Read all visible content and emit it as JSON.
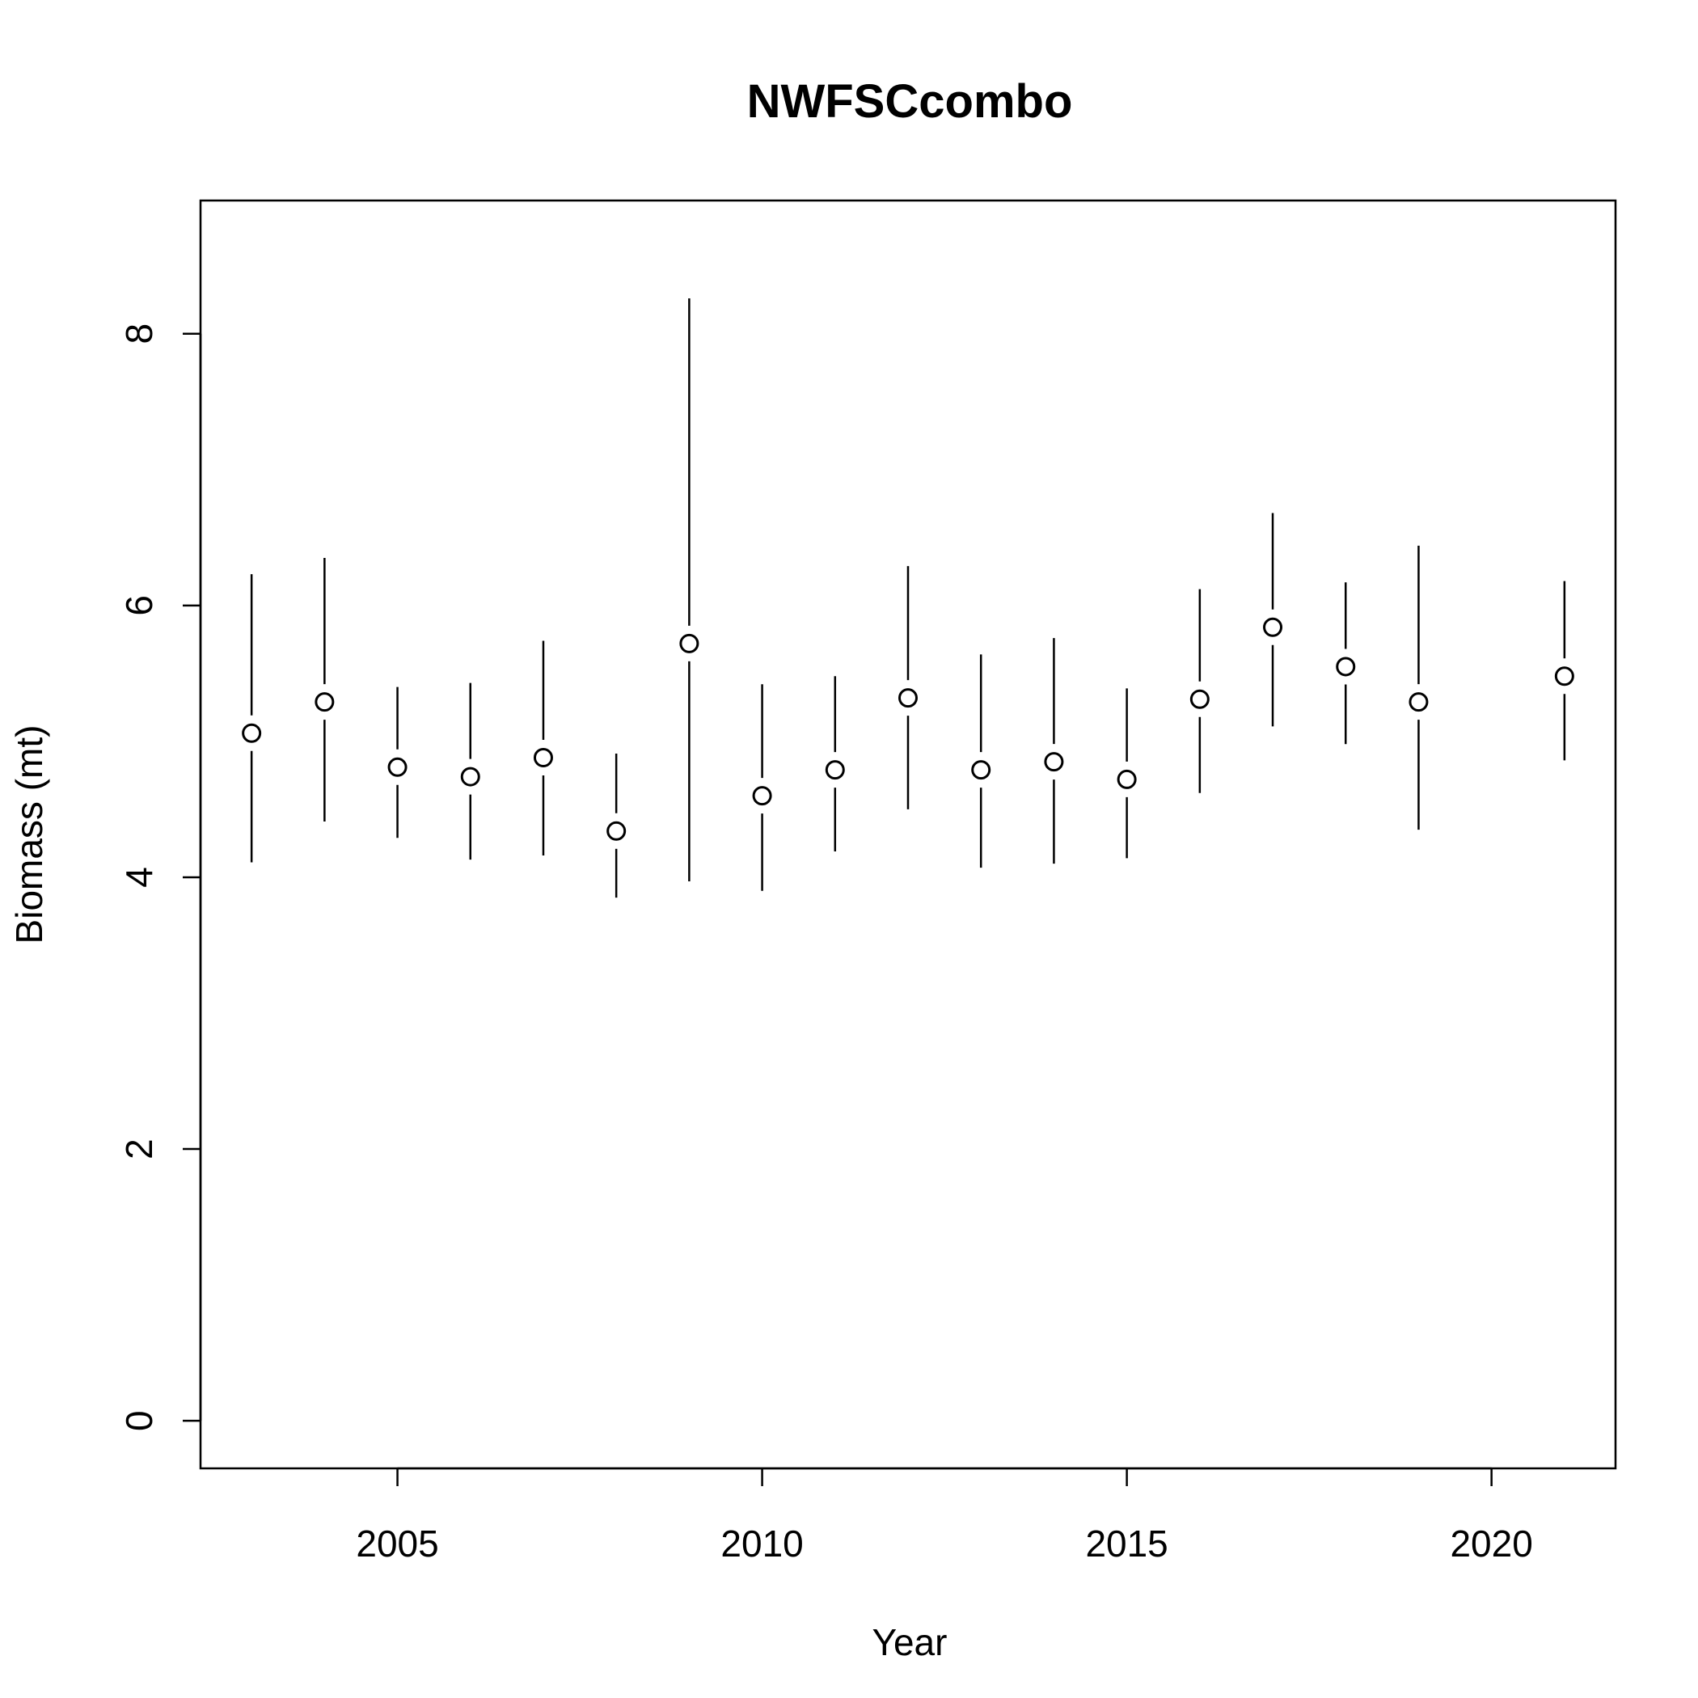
{
  "chart_data": {
    "type": "scatter",
    "title": "NWFSCcombo",
    "xlabel": "Year",
    "ylabel": "Biomass (mt)",
    "xlim": [
      2002.3,
      2021.7
    ],
    "ylim": [
      -0.35,
      8.98
    ],
    "xticks": [
      2005,
      2010,
      2015,
      2020
    ],
    "yticks": [
      0,
      2,
      4,
      6,
      8
    ],
    "grid": false,
    "error_bars": true,
    "point_style": "open-circle",
    "series": [
      {
        "x": [
          2003,
          2004,
          2005,
          2006,
          2007,
          2008,
          2009,
          2010,
          2011,
          2012,
          2013,
          2014,
          2015,
          2016,
          2017,
          2018,
          2019,
          2021
        ],
        "y": [
          5.06,
          5.29,
          4.81,
          4.74,
          4.88,
          4.34,
          5.72,
          4.6,
          4.79,
          5.32,
          4.79,
          4.85,
          4.72,
          5.31,
          5.84,
          5.55,
          5.29,
          5.48
        ],
        "lower": [
          4.11,
          4.41,
          4.29,
          4.13,
          4.16,
          3.85,
          3.97,
          3.9,
          4.19,
          4.5,
          4.07,
          4.1,
          4.14,
          4.62,
          5.11,
          4.98,
          4.35,
          4.86
        ],
        "upper": [
          6.23,
          6.35,
          5.4,
          5.43,
          5.74,
          4.91,
          8.26,
          5.42,
          5.48,
          6.29,
          5.64,
          5.76,
          5.39,
          6.12,
          6.68,
          6.17,
          6.44,
          6.18
        ]
      }
    ]
  }
}
